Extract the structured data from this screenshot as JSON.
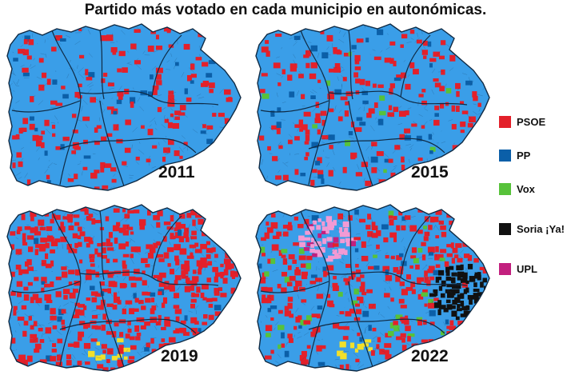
{
  "title": "Partido más votado en cada municipio en autonómicas.",
  "colors": {
    "base": "#3a9ee8",
    "border": "#1b3f60",
    "PSOE": "#e3202a",
    "PP": "#0b5fa8",
    "Vox": "#57c23a",
    "SoriaYa": "#111111",
    "UPL": "#c2207e",
    "UPL_light": "#f29ad4",
    "other": "#f2e02a"
  },
  "legend": [
    {
      "key": "PSOE",
      "label": "PSOE",
      "color": "#e3202a"
    },
    {
      "key": "PP",
      "label": "PP",
      "color": "#0b5fa8"
    },
    {
      "key": "Vox",
      "label": "Vox",
      "color": "#57c23a"
    },
    {
      "key": "SoriaYa",
      "label": "Soria ¡Ya!",
      "color": "#111111"
    },
    {
      "key": "UPL",
      "label": "UPL",
      "color": "#c2207e"
    }
  ],
  "maps": [
    {
      "year": "2011",
      "psoe_share": 0.14,
      "vox_share": 0.0,
      "soria_ya": false,
      "upl": false
    },
    {
      "year": "2015",
      "psoe_share": 0.17,
      "vox_share": 0.01,
      "soria_ya": false,
      "upl": false
    },
    {
      "year": "2019",
      "psoe_share": 0.4,
      "vox_share": 0.0,
      "soria_ya": false,
      "upl": false
    },
    {
      "year": "2022",
      "psoe_share": 0.27,
      "vox_share": 0.03,
      "soria_ya": true,
      "upl": true
    }
  ]
}
